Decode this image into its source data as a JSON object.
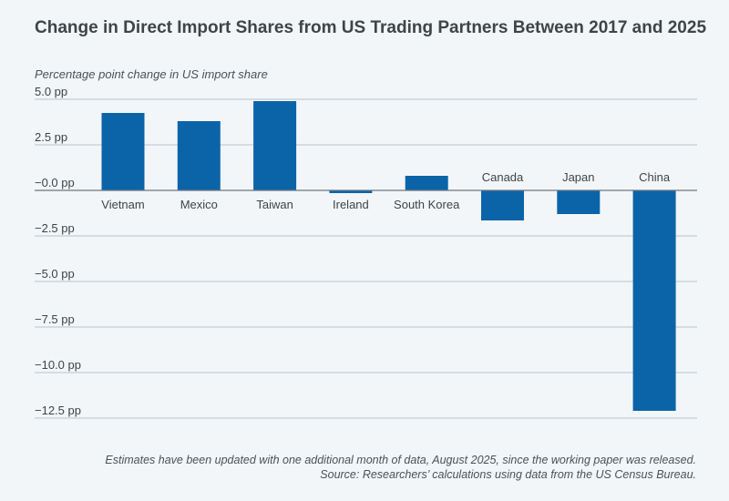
{
  "chart_data": {
    "type": "bar",
    "title": "Change in Direct Import Shares from US Trading Partners Between 2017 and 2025",
    "ylabel": "Percentage point change in US import share",
    "xlabel": "",
    "categories": [
      "Vietnam",
      "Mexico",
      "Taiwan",
      "Ireland",
      "South Korea",
      "Canada",
      "Japan",
      "China"
    ],
    "values": [
      4.25,
      3.8,
      4.9,
      -0.15,
      0.8,
      -1.65,
      -1.3,
      -12.1
    ],
    "ylim": [
      -12.5,
      5.0
    ],
    "yticks": [
      5.0,
      2.5,
      0.0,
      -2.5,
      -5.0,
      -7.5,
      -10.0,
      -12.5
    ],
    "ytick_labels": [
      "5.0 pp",
      "2.5 pp",
      "−0.0 pp",
      "−2.5 pp",
      "−5.0 pp",
      "−7.5 pp",
      "−10.0 pp",
      "−12.5 pp"
    ],
    "grid": true,
    "legend": "none",
    "bar_color": "#0b64a8",
    "grid_color": "#b9c2cb",
    "zero_line_color": "#6e7780"
  },
  "footnote": {
    "line1": "Estimates have been updated with one additional month of data, August 2025, since the working paper was released.",
    "line2": "Source: Researchers’ calculations using data from the US Census Bureau."
  }
}
